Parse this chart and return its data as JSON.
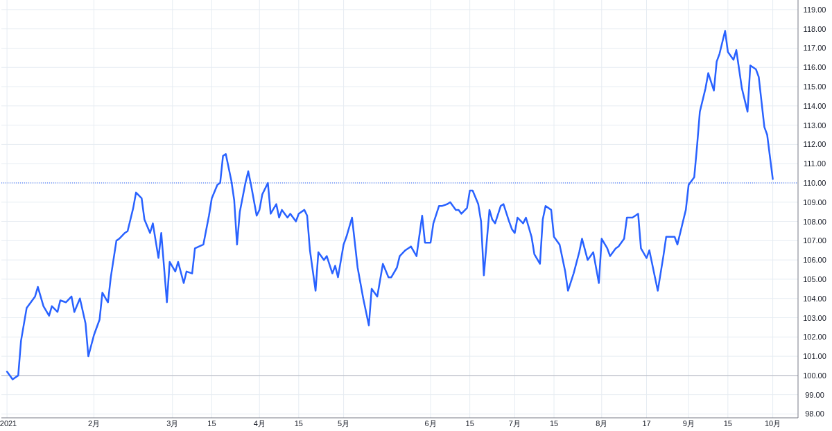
{
  "chart_data": {
    "type": "line",
    "grid": true,
    "line_style": "solid",
    "marker": "none",
    "xlim": [
      "2020-12-30",
      "2021-10-10"
    ],
    "ylim": [
      97.8,
      119.5
    ],
    "xticks": [
      {
        "value": "2021-01-01",
        "label": "2021"
      },
      {
        "value": "2021-02-01",
        "label": "2月"
      },
      {
        "value": "2021-03-01",
        "label": "3月"
      },
      {
        "value": "2021-03-15",
        "label": "15"
      },
      {
        "value": "2021-04-01",
        "label": "4月"
      },
      {
        "value": "2021-04-15",
        "label": "15"
      },
      {
        "value": "2021-05-01",
        "label": "5月"
      },
      {
        "value": "2021-06-01",
        "label": "6月"
      },
      {
        "value": "2021-06-15",
        "label": "15"
      },
      {
        "value": "2021-07-01",
        "label": "7月"
      },
      {
        "value": "2021-07-15",
        "label": "15"
      },
      {
        "value": "2021-08-01",
        "label": "8月"
      },
      {
        "value": "2021-08-17",
        "label": "17"
      },
      {
        "value": "2021-09-01",
        "label": "9月"
      },
      {
        "value": "2021-09-15",
        "label": "15"
      },
      {
        "value": "2021-10-01",
        "label": "10月"
      }
    ],
    "yticks": [
      {
        "value": 98,
        "label": "98.00"
      },
      {
        "value": 99,
        "label": "99.00"
      },
      {
        "value": 100,
        "label": "100.00"
      },
      {
        "value": 101,
        "label": "101.00"
      },
      {
        "value": 102,
        "label": "102.00"
      },
      {
        "value": 103,
        "label": "103.00"
      },
      {
        "value": 104,
        "label": "104.00"
      },
      {
        "value": 105,
        "label": "105.00"
      },
      {
        "value": 106,
        "label": "106.00"
      },
      {
        "value": 107,
        "label": "107.00"
      },
      {
        "value": 108,
        "label": "108.00"
      },
      {
        "value": 109,
        "label": "109.00"
      },
      {
        "value": 110,
        "label": "110.00"
      },
      {
        "value": 111,
        "label": "111.00"
      },
      {
        "value": 112,
        "label": "112.00"
      },
      {
        "value": 113,
        "label": "113.00"
      },
      {
        "value": 114,
        "label": "114.00"
      },
      {
        "value": 115,
        "label": "115.00"
      },
      {
        "value": 116,
        "label": "116.00"
      },
      {
        "value": 117,
        "label": "117.00"
      },
      {
        "value": 118,
        "label": "118.00"
      },
      {
        "value": 119,
        "label": "119.00"
      }
    ],
    "ref_lines": [
      {
        "axis": "y",
        "value": 110,
        "color": "#2962ff",
        "line_style": "dotted"
      },
      {
        "axis": "y",
        "value": 100,
        "color": "#b2b5be",
        "line_style": "solid"
      }
    ],
    "series": [
      {
        "color": "#2962ff",
        "x": [
          "2021-01-01",
          "2021-01-03",
          "2021-01-05",
          "2021-01-06",
          "2021-01-08",
          "2021-01-09",
          "2021-01-11",
          "2021-01-12",
          "2021-01-14",
          "2021-01-16",
          "2021-01-17",
          "2021-01-19",
          "2021-01-20",
          "2021-01-22",
          "2021-01-24",
          "2021-01-25",
          "2021-01-27",
          "2021-01-29",
          "2021-01-30",
          "2021-02-01",
          "2021-02-03",
          "2021-02-04",
          "2021-02-06",
          "2021-02-07",
          "2021-02-09",
          "2021-02-10",
          "2021-02-12",
          "2021-02-13",
          "2021-02-15",
          "2021-02-16",
          "2021-02-18",
          "2021-02-19",
          "2021-02-21",
          "2021-02-22",
          "2021-02-24",
          "2021-02-25",
          "2021-02-27",
          "2021-02-28",
          "2021-03-02",
          "2021-03-03",
          "2021-03-05",
          "2021-03-06",
          "2021-03-08",
          "2021-03-09",
          "2021-03-12",
          "2021-03-14",
          "2021-03-15",
          "2021-03-17",
          "2021-03-18",
          "2021-03-19",
          "2021-03-20",
          "2021-03-22",
          "2021-03-23",
          "2021-03-24",
          "2021-03-25",
          "2021-03-27",
          "2021-03-28",
          "2021-03-29",
          "2021-03-31",
          "2021-04-01",
          "2021-04-02",
          "2021-04-04",
          "2021-04-05",
          "2021-04-07",
          "2021-04-08",
          "2021-04-09",
          "2021-04-11",
          "2021-04-12",
          "2021-04-14",
          "2021-04-15",
          "2021-04-17",
          "2021-04-18",
          "2021-04-19",
          "2021-04-21",
          "2021-04-22",
          "2021-04-24",
          "2021-04-25",
          "2021-04-27",
          "2021-04-28",
          "2021-04-29",
          "2021-05-01",
          "2021-05-02",
          "2021-05-04",
          "2021-05-06",
          "2021-05-08",
          "2021-05-10",
          "2021-05-11",
          "2021-05-13",
          "2021-05-15",
          "2021-05-17",
          "2021-05-18",
          "2021-05-20",
          "2021-05-21",
          "2021-05-23",
          "2021-05-25",
          "2021-05-27",
          "2021-05-29",
          "2021-05-30",
          "2021-06-01",
          "2021-06-02",
          "2021-06-04",
          "2021-06-05",
          "2021-06-07",
          "2021-06-08",
          "2021-06-10",
          "2021-06-11",
          "2021-06-12",
          "2021-06-14",
          "2021-06-15",
          "2021-06-16",
          "2021-06-18",
          "2021-06-19",
          "2021-06-20",
          "2021-06-22",
          "2021-06-23",
          "2021-06-24",
          "2021-06-26",
          "2021-06-27",
          "2021-06-29",
          "2021-06-30",
          "2021-07-01",
          "2021-07-02",
          "2021-07-04",
          "2021-07-05",
          "2021-07-07",
          "2021-07-08",
          "2021-07-10",
          "2021-07-11",
          "2021-07-12",
          "2021-07-14",
          "2021-07-15",
          "2021-07-17",
          "2021-07-19",
          "2021-07-20",
          "2021-07-22",
          "2021-07-24",
          "2021-07-25",
          "2021-07-27",
          "2021-07-29",
          "2021-07-31",
          "2021-08-01",
          "2021-08-03",
          "2021-08-04",
          "2021-08-06",
          "2021-08-07",
          "2021-08-09",
          "2021-08-10",
          "2021-08-12",
          "2021-08-14",
          "2021-08-15",
          "2021-08-17",
          "2021-08-18",
          "2021-08-20",
          "2021-08-21",
          "2021-08-23",
          "2021-08-24",
          "2021-08-25",
          "2021-08-27",
          "2021-08-28",
          "2021-08-30",
          "2021-08-31",
          "2021-09-01",
          "2021-09-03",
          "2021-09-04",
          "2021-09-05",
          "2021-09-07",
          "2021-09-08",
          "2021-09-10",
          "2021-09-11",
          "2021-09-12",
          "2021-09-14",
          "2021-09-15",
          "2021-09-17",
          "2021-09-18",
          "2021-09-20",
          "2021-09-22",
          "2021-09-23",
          "2021-09-25",
          "2021-09-26",
          "2021-09-28",
          "2021-09-29",
          "2021-10-01"
        ],
        "values": [
          100.2,
          99.8,
          100.0,
          101.8,
          103.5,
          103.7,
          104.1,
          104.6,
          103.6,
          103.1,
          103.6,
          103.3,
          103.9,
          103.8,
          104.1,
          103.3,
          104.0,
          102.7,
          101.0,
          102.1,
          102.9,
          104.3,
          103.8,
          105.1,
          107.0,
          107.1,
          107.4,
          107.5,
          108.7,
          109.5,
          109.2,
          108.1,
          107.4,
          107.9,
          106.1,
          107.4,
          103.8,
          105.9,
          105.4,
          105.9,
          104.8,
          105.4,
          105.3,
          106.6,
          106.8,
          108.3,
          109.2,
          109.9,
          110.0,
          111.4,
          111.5,
          110.1,
          109.1,
          106.8,
          108.5,
          110.0,
          110.6,
          109.9,
          108.3,
          108.6,
          109.4,
          110.0,
          108.4,
          108.9,
          108.2,
          108.6,
          108.2,
          108.4,
          108.0,
          108.4,
          108.6,
          108.3,
          106.5,
          104.4,
          106.4,
          106.0,
          106.2,
          105.3,
          105.7,
          105.1,
          106.8,
          107.2,
          108.2,
          105.6,
          104.0,
          102.6,
          104.5,
          104.1,
          105.8,
          105.1,
          105.1,
          105.6,
          106.2,
          106.5,
          106.7,
          106.2,
          108.3,
          106.9,
          106.9,
          107.9,
          108.8,
          108.8,
          108.9,
          109.0,
          108.6,
          108.6,
          108.4,
          108.7,
          109.6,
          109.6,
          108.9,
          108.0,
          105.2,
          108.6,
          108.1,
          107.9,
          108.8,
          108.9,
          108.0,
          107.6,
          107.4,
          108.2,
          107.9,
          108.2,
          107.2,
          106.3,
          105.8,
          108.1,
          108.8,
          108.6,
          107.2,
          106.8,
          105.4,
          104.4,
          105.3,
          106.4,
          107.1,
          106.0,
          106.4,
          104.8,
          107.1,
          106.6,
          106.2,
          106.6,
          106.7,
          107.1,
          108.2,
          108.2,
          108.4,
          106.6,
          106.1,
          106.5,
          105.1,
          104.4,
          106.2,
          107.2,
          107.2,
          107.2,
          106.8,
          108.0,
          108.6,
          109.9,
          110.3,
          111.9,
          113.7,
          114.9,
          115.7,
          114.8,
          116.3,
          116.7,
          117.9,
          116.8,
          116.4,
          116.9,
          114.9,
          113.7,
          116.1,
          115.9,
          115.5,
          112.9,
          112.5,
          110.2
        ]
      }
    ]
  }
}
